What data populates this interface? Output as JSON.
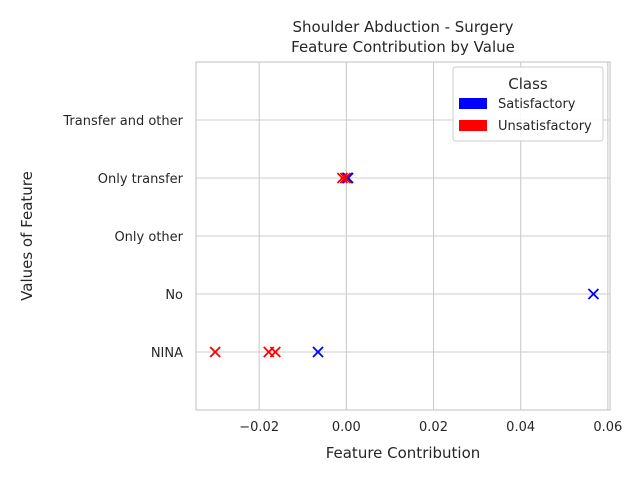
{
  "chart_data": {
    "type": "scatter",
    "title_line1": "Shoulder Abduction - Surgery",
    "title_line2": "Feature Contribution by Value",
    "xlabel": "Feature Contribution",
    "ylabel": "Values of Feature",
    "categories": [
      "NINA",
      "No",
      "Only other",
      "Only transfer",
      "Transfer and other"
    ],
    "xlim": [
      -0.0345,
      0.0605
    ],
    "xticks": [
      -0.02,
      0.0,
      0.02,
      0.04,
      0.06
    ],
    "xtick_labels": [
      "−0.02",
      "0.00",
      "0.02",
      "0.04",
      "0.06"
    ],
    "grid": true,
    "legend": {
      "title": "Class",
      "position": "top-right",
      "entries": [
        {
          "label": "Satisfactory",
          "color": "#0000ff"
        },
        {
          "label": "Unsatisfactory",
          "color": "#ff0000"
        }
      ]
    },
    "series": [
      {
        "name": "Satisfactory",
        "color": "#0000ff",
        "marker": "x",
        "points": [
          {
            "category": "NINA",
            "x": -0.0065
          },
          {
            "category": "No",
            "x": 0.0567
          },
          {
            "category": "Only transfer",
            "x": 0.0002
          },
          {
            "category": "Only transfer",
            "x": 0.0004
          }
        ]
      },
      {
        "name": "Unsatisfactory",
        "color": "#ff0000",
        "marker": "x",
        "points": [
          {
            "category": "NINA",
            "x": -0.0301
          },
          {
            "category": "NINA",
            "x": -0.0178
          },
          {
            "category": "NINA",
            "x": -0.0163
          },
          {
            "category": "Only transfer",
            "x": -0.0009
          },
          {
            "category": "Only transfer",
            "x": -0.0002
          }
        ]
      }
    ]
  }
}
